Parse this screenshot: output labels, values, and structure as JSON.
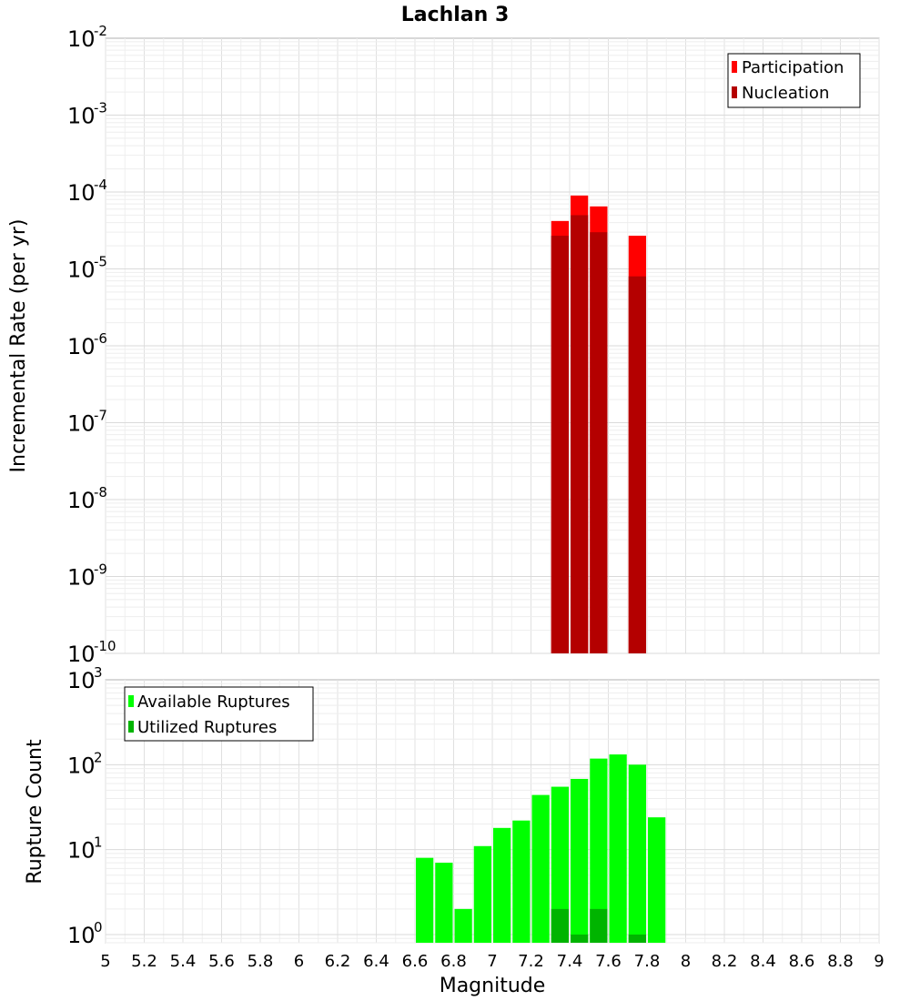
{
  "chart_data": [
    {
      "type": "bar",
      "title": "Lachlan 3",
      "ylabel": "Incremental Rate (per yr)",
      "yscale": "log",
      "ylim": [
        1e-10,
        0.01
      ],
      "xlim": [
        5,
        9
      ],
      "grid": true,
      "legend_position": "top-right",
      "y_ticks": [
        {
          "base": "10",
          "exp": "-10",
          "value": 1e-10
        },
        {
          "base": "10",
          "exp": "-9",
          "value": 1e-09
        },
        {
          "base": "10",
          "exp": "-8",
          "value": 1e-08
        },
        {
          "base": "10",
          "exp": "-7",
          "value": 1e-07
        },
        {
          "base": "10",
          "exp": "-6",
          "value": 1e-06
        },
        {
          "base": "10",
          "exp": "-5",
          "value": 1e-05
        },
        {
          "base": "10",
          "exp": "-4",
          "value": 0.0001
        },
        {
          "base": "10",
          "exp": "-3",
          "value": 0.001
        },
        {
          "base": "10",
          "exp": "-2",
          "value": 0.01
        }
      ],
      "series": [
        {
          "name": "Participation",
          "color": "#ff0000",
          "x": [
            7.35,
            7.45,
            7.55,
            7.75
          ],
          "values": [
            4.2e-05,
            9e-05,
            6.5e-05,
            2.7e-05
          ]
        },
        {
          "name": "Nucleation",
          "color": "#b40000",
          "x": [
            7.35,
            7.45,
            7.55,
            7.75
          ],
          "values": [
            2.7e-05,
            5e-05,
            3e-05,
            8e-06
          ]
        }
      ]
    },
    {
      "type": "bar",
      "ylabel": "Rupture Count",
      "xlabel": "Magnitude",
      "yscale": "log",
      "ylim": [
        0.8,
        1000
      ],
      "xlim": [
        5,
        9
      ],
      "grid": true,
      "legend_position": "top-left",
      "x_ticks": [
        "5",
        "5.2",
        "5.4",
        "5.6",
        "5.8",
        "6",
        "6.2",
        "6.4",
        "6.6",
        "6.8",
        "7",
        "7.2",
        "7.4",
        "7.6",
        "7.8",
        "8",
        "8.2",
        "8.4",
        "8.6",
        "8.8",
        "9"
      ],
      "y_ticks": [
        {
          "base": "10",
          "exp": "0",
          "value": 1
        },
        {
          "base": "10",
          "exp": "1",
          "value": 10
        },
        {
          "base": "10",
          "exp": "2",
          "value": 100
        },
        {
          "base": "10",
          "exp": "3",
          "value": 1000
        }
      ],
      "series": [
        {
          "name": "Available Ruptures",
          "color": "#00ff00",
          "x": [
            6.65,
            6.75,
            6.85,
            6.95,
            7.05,
            7.15,
            7.25,
            7.35,
            7.45,
            7.55,
            7.65,
            7.75,
            7.85
          ],
          "values": [
            8,
            7,
            2,
            11,
            18,
            22,
            44,
            55,
            68,
            118,
            132,
            100,
            24
          ]
        },
        {
          "name": "Utilized Ruptures",
          "color": "#00b400",
          "x": [
            7.35,
            7.45,
            7.55,
            7.75
          ],
          "values": [
            2,
            1,
            2,
            1
          ]
        }
      ]
    }
  ]
}
